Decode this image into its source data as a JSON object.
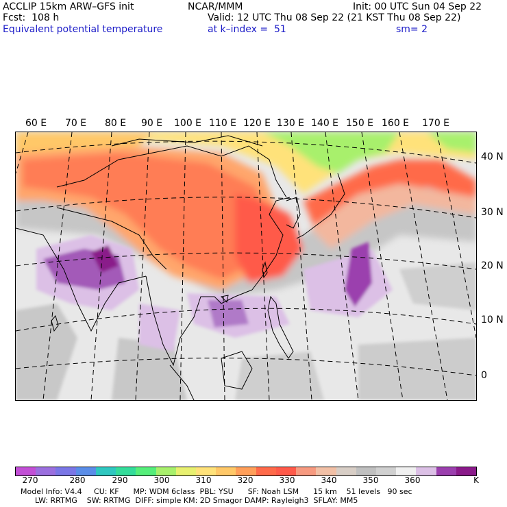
{
  "header": {
    "left_line1": "ACCLIP 15km ARW–GFS init",
    "left_line2": "Fcst:  108 h",
    "left_line3": "Equivalent potential temperature",
    "center_line1": "NCAR/MMM",
    "valid": "Valid: 12 UTC Thu 08 Sep 22 (21 KST Thu 08 Sep 22)",
    "level": "at k–index =  51",
    "init": "Init: 00 UTC Sun 04 Sep 22",
    "smooth": "sm= 2"
  },
  "map": {
    "lon_labels": [
      "60 E",
      "70 E",
      "80 E",
      "90 E",
      "100 E",
      "110 E",
      "120 E",
      "130 E",
      "140 E",
      "150 E",
      "160 E",
      "170 E"
    ],
    "lat_labels": [
      "40 N",
      "30 N",
      "20 N",
      "10 N",
      "0"
    ]
  },
  "colorbar": {
    "unit": "K",
    "colors": [
      "#c24fd6",
      "#9b6fdf",
      "#7a76e6",
      "#5a8de8",
      "#2fc7c0",
      "#33dc9a",
      "#55ee7a",
      "#a8f06c",
      "#e8f070",
      "#ffe27a",
      "#ffc868",
      "#ff9f5a",
      "#ff6a4a",
      "#ff5a4a",
      "#f79a80",
      "#f2c0a6",
      "#d8cec6",
      "#c0c0c0",
      "#d0d0d0",
      "#f0f0f0",
      "#dcc0e6",
      "#9b3fae",
      "#8a1a8a"
    ],
    "labels": [
      "270",
      "280",
      "290",
      "300",
      "310",
      "320",
      "330",
      "340",
      "350",
      "360"
    ]
  },
  "info": {
    "line1": "Model Info: V4.4     CU: KF      MP: WDM 6class  PBL: YSU      SF: Noah LSM      15 km    51 levels   90 sec",
    "line2": "      LW: RRTMG    SW: RRTMG  DIFF: simple KM: 2D Smagor DAMP: Rayleigh3  SFLAY: MM5"
  }
}
